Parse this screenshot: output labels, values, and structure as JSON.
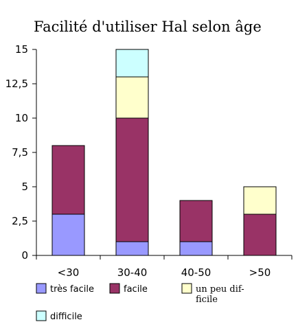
{
  "chart_data": {
    "type": "bar",
    "stacked": true,
    "title": "Facilité d'utiliser Hal selon âge",
    "xlabel": "",
    "ylabel": "",
    "categories": [
      "<30",
      "30-40",
      "40-50",
      ">50"
    ],
    "ylim": [
      0,
      15
    ],
    "yticks": [
      0,
      2.5,
      5,
      7.5,
      10,
      12.5,
      15
    ],
    "ytick_labels": [
      "0",
      "2,5",
      "5",
      "7,5",
      "10",
      "12,5",
      "15"
    ],
    "grid": false,
    "legend_position": "bottom",
    "series": [
      {
        "name": "très facile",
        "values": [
          3,
          1,
          1,
          0
        ],
        "color": "#9999ff"
      },
      {
        "name": "facile",
        "values": [
          5,
          9,
          3,
          3
        ],
        "color": "#993366"
      },
      {
        "name": "un peu difficile",
        "legend_lines": [
          "un peu dif-",
          "ficile"
        ],
        "values": [
          0,
          3,
          0,
          2
        ],
        "color": "#ffffcc"
      },
      {
        "name": "difficile",
        "values": [
          0,
          2,
          0,
          0
        ],
        "color": "#ccffff"
      }
    ]
  }
}
